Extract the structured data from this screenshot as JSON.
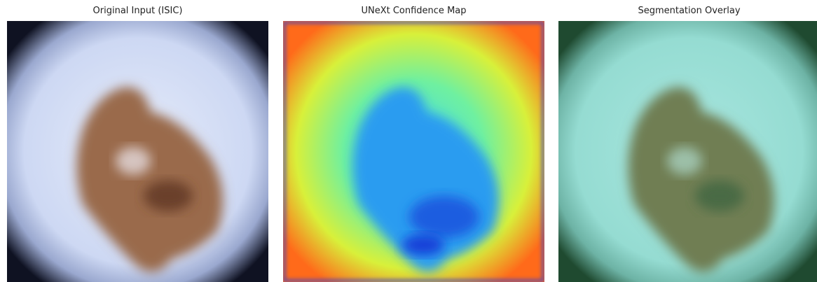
{
  "panels": [
    {
      "title": "Original Input (ISIC)"
    },
    {
      "title": "UNeXt Confidence Map"
    },
    {
      "title": "Segmentation Overlay"
    }
  ]
}
